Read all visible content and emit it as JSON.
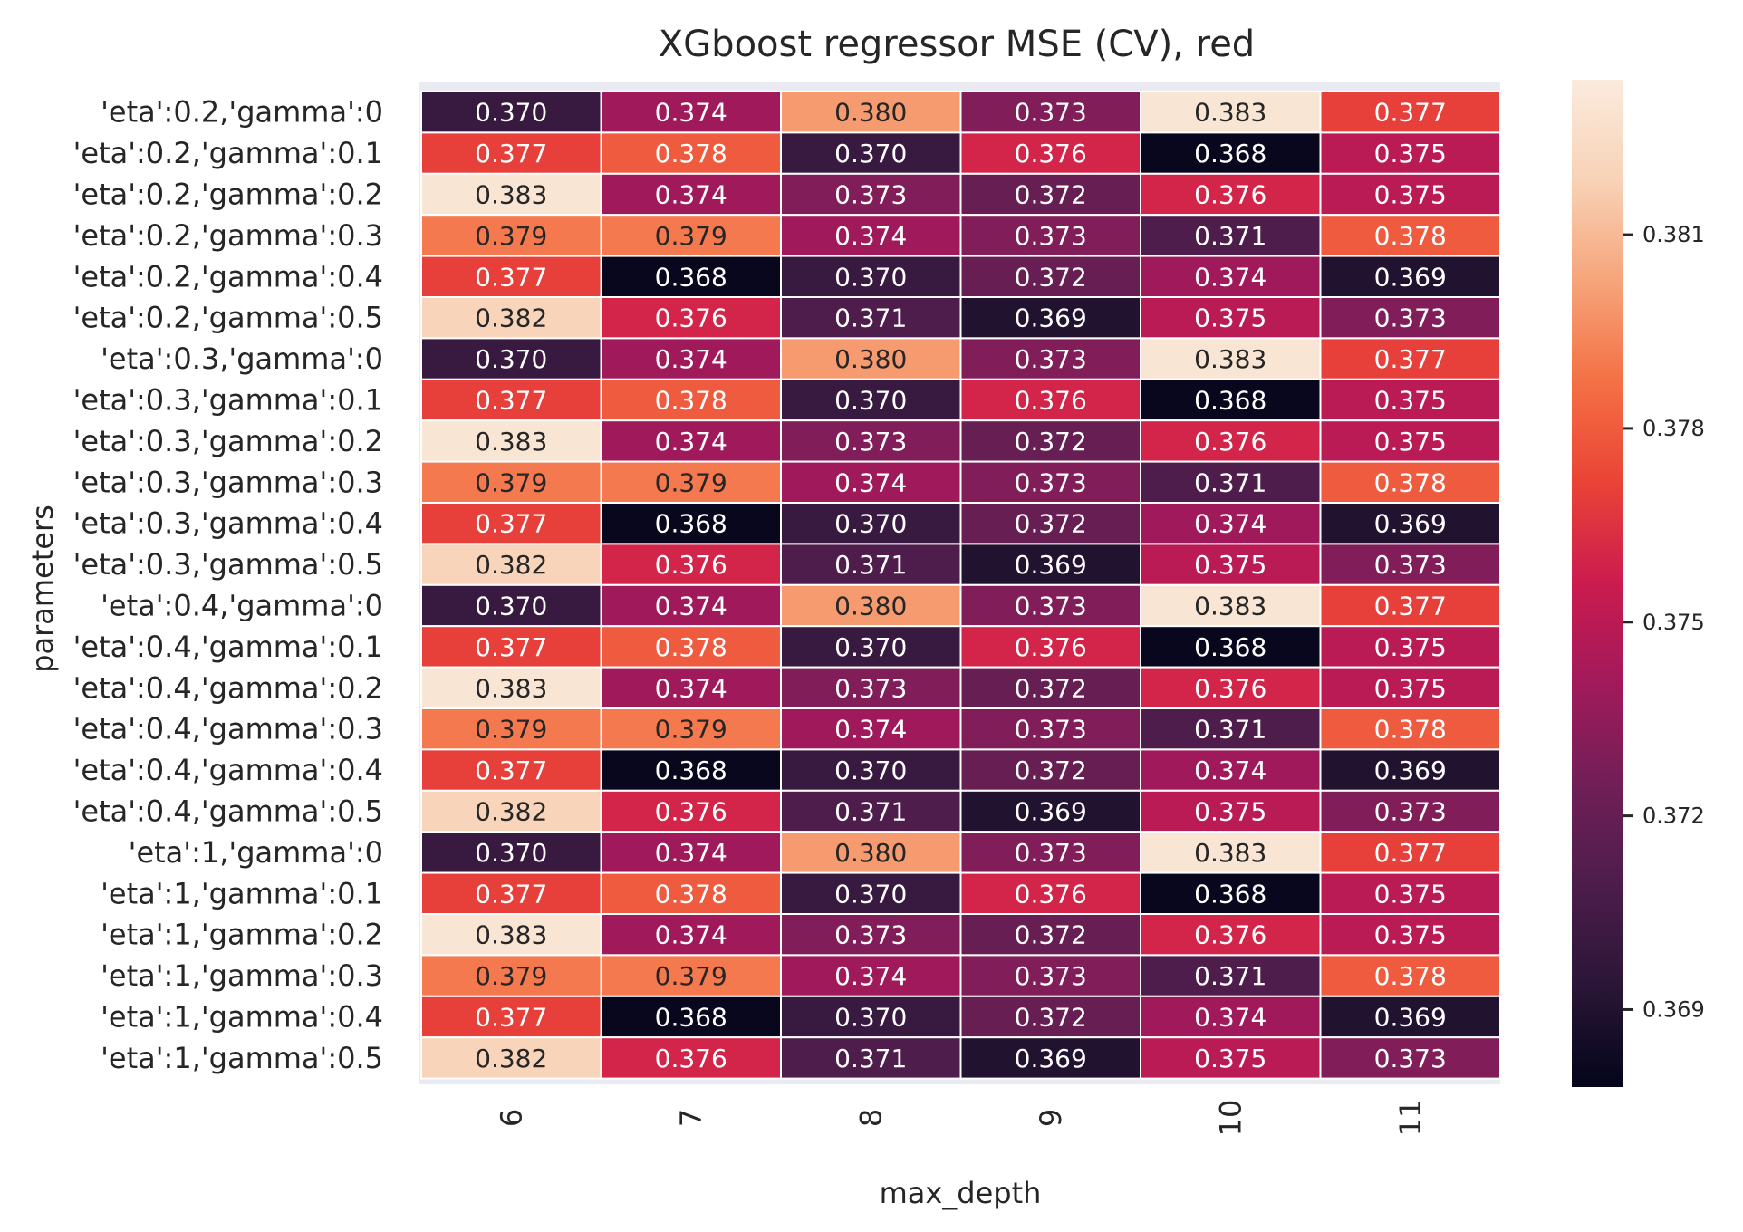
{
  "chart_data": {
    "type": "heatmap",
    "title": "XGboost regressor MSE (CV), red",
    "xlabel": "max_depth",
    "ylabel": "parameters",
    "x_categories": [
      "6",
      "7",
      "8",
      "9",
      "10",
      "11"
    ],
    "y_categories": [
      "'eta':0.2,'gamma':0",
      "'eta':0.2,'gamma':0.1",
      "'eta':0.2,'gamma':0.2",
      "'eta':0.2,'gamma':0.3",
      "'eta':0.2,'gamma':0.4",
      "'eta':0.2,'gamma':0.5",
      "'eta':0.3,'gamma':0",
      "'eta':0.3,'gamma':0.1",
      "'eta':0.3,'gamma':0.2",
      "'eta':0.3,'gamma':0.3",
      "'eta':0.3,'gamma':0.4",
      "'eta':0.3,'gamma':0.5",
      "'eta':0.4,'gamma':0",
      "'eta':0.4,'gamma':0.1",
      "'eta':0.4,'gamma':0.2",
      "'eta':0.4,'gamma':0.3",
      "'eta':0.4,'gamma':0.4",
      "'eta':0.4,'gamma':0.5",
      "'eta':1,'gamma':0",
      "'eta':1,'gamma':0.1",
      "'eta':1,'gamma':0.2",
      "'eta':1,'gamma':0.3",
      "'eta':1,'gamma':0.4",
      "'eta':1,'gamma':0.5"
    ],
    "values": [
      [
        0.37,
        0.374,
        0.38,
        0.373,
        0.383,
        0.377
      ],
      [
        0.377,
        0.378,
        0.37,
        0.376,
        0.368,
        0.375
      ],
      [
        0.383,
        0.374,
        0.373,
        0.372,
        0.376,
        0.375
      ],
      [
        0.379,
        0.379,
        0.374,
        0.373,
        0.371,
        0.378
      ],
      [
        0.377,
        0.368,
        0.37,
        0.372,
        0.374,
        0.369
      ],
      [
        0.382,
        0.376,
        0.371,
        0.369,
        0.375,
        0.373
      ],
      [
        0.37,
        0.374,
        0.38,
        0.373,
        0.383,
        0.377
      ],
      [
        0.377,
        0.378,
        0.37,
        0.376,
        0.368,
        0.375
      ],
      [
        0.383,
        0.374,
        0.373,
        0.372,
        0.376,
        0.375
      ],
      [
        0.379,
        0.379,
        0.374,
        0.373,
        0.371,
        0.378
      ],
      [
        0.377,
        0.368,
        0.37,
        0.372,
        0.374,
        0.369
      ],
      [
        0.382,
        0.376,
        0.371,
        0.369,
        0.375,
        0.373
      ],
      [
        0.37,
        0.374,
        0.38,
        0.373,
        0.383,
        0.377
      ],
      [
        0.377,
        0.378,
        0.37,
        0.376,
        0.368,
        0.375
      ],
      [
        0.383,
        0.374,
        0.373,
        0.372,
        0.376,
        0.375
      ],
      [
        0.379,
        0.379,
        0.374,
        0.373,
        0.371,
        0.378
      ],
      [
        0.377,
        0.368,
        0.37,
        0.372,
        0.374,
        0.369
      ],
      [
        0.382,
        0.376,
        0.371,
        0.369,
        0.375,
        0.373
      ],
      [
        0.37,
        0.374,
        0.38,
        0.373,
        0.383,
        0.377
      ],
      [
        0.377,
        0.378,
        0.37,
        0.376,
        0.368,
        0.375
      ],
      [
        0.383,
        0.374,
        0.373,
        0.372,
        0.376,
        0.375
      ],
      [
        0.379,
        0.379,
        0.374,
        0.373,
        0.371,
        0.378
      ],
      [
        0.377,
        0.368,
        0.37,
        0.372,
        0.374,
        0.369
      ],
      [
        0.382,
        0.376,
        0.371,
        0.369,
        0.375,
        0.373
      ]
    ],
    "annotations": [
      [
        "0.370",
        "0.374",
        "0.380",
        "0.373",
        "0.383",
        "0.377"
      ],
      [
        "0.377",
        "0.378",
        "0.370",
        "0.376",
        "0.368",
        "0.375"
      ],
      [
        "0.383",
        "0.374",
        "0.373",
        "0.372",
        "0.376",
        "0.375"
      ],
      [
        "0.379",
        "0.379",
        "0.374",
        "0.373",
        "0.371",
        "0.378"
      ],
      [
        "0.377",
        "0.368",
        "0.370",
        "0.372",
        "0.374",
        "0.369"
      ],
      [
        "0.382",
        "0.376",
        "0.371",
        "0.369",
        "0.375",
        "0.373"
      ],
      [
        "0.370",
        "0.374",
        "0.380",
        "0.373",
        "0.383",
        "0.377"
      ],
      [
        "0.377",
        "0.378",
        "0.370",
        "0.376",
        "0.368",
        "0.375"
      ],
      [
        "0.383",
        "0.374",
        "0.373",
        "0.372",
        "0.376",
        "0.375"
      ],
      [
        "0.379",
        "0.379",
        "0.374",
        "0.373",
        "0.371",
        "0.378"
      ],
      [
        "0.377",
        "0.368",
        "0.370",
        "0.372",
        "0.374",
        "0.369"
      ],
      [
        "0.382",
        "0.376",
        "0.371",
        "0.369",
        "0.375",
        "0.373"
      ],
      [
        "0.370",
        "0.374",
        "0.380",
        "0.373",
        "0.383",
        "0.377"
      ],
      [
        "0.377",
        "0.378",
        "0.370",
        "0.376",
        "0.368",
        "0.375"
      ],
      [
        "0.383",
        "0.374",
        "0.373",
        "0.372",
        "0.376",
        "0.375"
      ],
      [
        "0.379",
        "0.379",
        "0.374",
        "0.373",
        "0.371",
        "0.378"
      ],
      [
        "0.377",
        "0.368",
        "0.370",
        "0.372",
        "0.374",
        "0.369"
      ],
      [
        "0.382",
        "0.376",
        "0.371",
        "0.369",
        "0.375",
        "0.373"
      ],
      [
        "0.370",
        "0.374",
        "0.380",
        "0.373",
        "0.383",
        "0.377"
      ],
      [
        "0.377",
        "0.378",
        "0.370",
        "0.376",
        "0.368",
        "0.375"
      ],
      [
        "0.383",
        "0.374",
        "0.373",
        "0.372",
        "0.376",
        "0.375"
      ],
      [
        "0.379",
        "0.379",
        "0.374",
        "0.373",
        "0.371",
        "0.378"
      ],
      [
        "0.377",
        "0.368",
        "0.370",
        "0.372",
        "0.374",
        "0.369"
      ],
      [
        "0.382",
        "0.376",
        "0.371",
        "0.369",
        "0.375",
        "0.373"
      ]
    ],
    "colorbar": {
      "vmin": 0.3678,
      "vmax": 0.3834,
      "ticks": [
        0.369,
        0.372,
        0.375,
        0.378,
        0.381
      ],
      "tick_labels": [
        "0.369",
        "0.372",
        "0.375",
        "0.378",
        "0.381"
      ],
      "colormap": "rocket",
      "colormap_stops": [
        "#03051a",
        "#2a1636",
        "#4c1d4b",
        "#711f57",
        "#a11a5b",
        "#cb1b4f",
        "#ea4336",
        "#f47044",
        "#f6a47a",
        "#f8d2b6",
        "#faebdd"
      ]
    },
    "grid": false,
    "cell_line_color": "#ffffff",
    "text_color_dark": "#262626",
    "text_color_light": "#ffffff",
    "frame_color": "#eaeaf2"
  }
}
